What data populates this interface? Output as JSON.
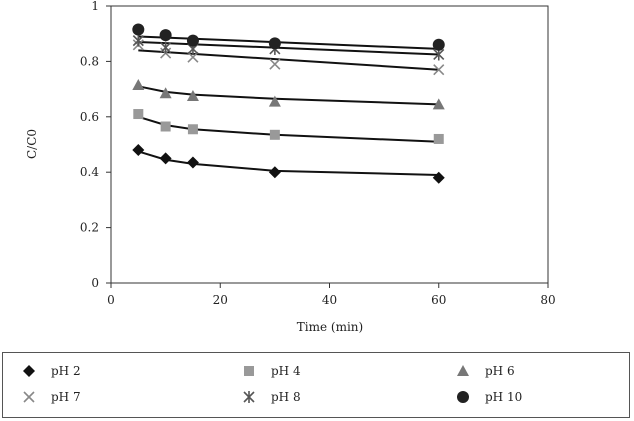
{
  "chart_data": {
    "type": "scatter",
    "title": "",
    "xlabel": "Time (min)",
    "ylabel": "C/C0",
    "xlim": [
      0,
      80
    ],
    "ylim": [
      0,
      1
    ],
    "x_ticks": [
      0,
      20,
      40,
      60,
      80
    ],
    "y_ticks": [
      0,
      0.2,
      0.4,
      0.6,
      0.8,
      1
    ],
    "x_tick_labels": [
      "0",
      "20",
      "40",
      "60",
      "80"
    ],
    "y_tick_labels": [
      "0",
      "0.2",
      "0.4",
      "0.6",
      "0.8",
      "1"
    ],
    "grid": false,
    "legend_position": "bottom",
    "x": [
      5,
      10,
      15,
      30,
      60
    ],
    "series": [
      {
        "name": "pH 2",
        "marker": "diamond",
        "color": "#111111",
        "values": [
          0.48,
          0.45,
          0.435,
          0.4,
          0.38
        ],
        "fit": [
          [
            5,
            0.475
          ],
          [
            10,
            0.445
          ],
          [
            15,
            0.43
          ],
          [
            30,
            0.405
          ],
          [
            60,
            0.39
          ]
        ]
      },
      {
        "name": "pH 4",
        "marker": "square",
        "color": "#999999",
        "values": [
          0.61,
          0.565,
          0.555,
          0.535,
          0.52
        ],
        "fit": [
          [
            5,
            0.6
          ],
          [
            10,
            0.57
          ],
          [
            15,
            0.555
          ],
          [
            30,
            0.535
          ],
          [
            60,
            0.51
          ]
        ]
      },
      {
        "name": "pH 6",
        "marker": "triangle",
        "color": "#777777",
        "values": [
          0.715,
          0.685,
          0.675,
          0.655,
          0.645
        ],
        "fit": [
          [
            5,
            0.71
          ],
          [
            10,
            0.69
          ],
          [
            15,
            0.68
          ],
          [
            30,
            0.665
          ],
          [
            60,
            0.645
          ]
        ]
      },
      {
        "name": "pH 7",
        "marker": "x",
        "color": "#888888",
        "values": [
          0.86,
          0.83,
          0.815,
          0.79,
          0.77
        ],
        "fit": [
          [
            5,
            0.84
          ],
          [
            60,
            0.77
          ]
        ]
      },
      {
        "name": "pH 8",
        "marker": "star",
        "color": "#555555",
        "values": [
          0.875,
          0.85,
          0.845,
          0.845,
          0.825
        ],
        "fit": [
          [
            5,
            0.87
          ],
          [
            60,
            0.825
          ]
        ]
      },
      {
        "name": "pH 10",
        "marker": "circle",
        "color": "#222222",
        "values": [
          0.915,
          0.895,
          0.875,
          0.865,
          0.86
        ],
        "fit": [
          [
            5,
            0.89
          ],
          [
            60,
            0.845
          ]
        ]
      }
    ]
  }
}
